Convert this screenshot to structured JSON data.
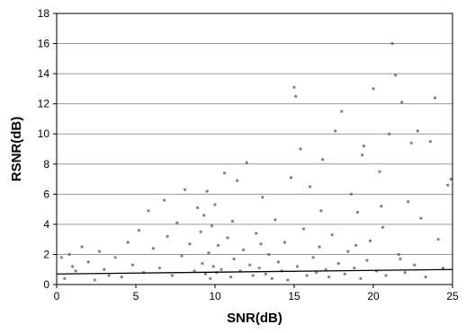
{
  "chart_data": {
    "type": "scatter",
    "title": "",
    "xlabel": "SNR(dB)",
    "ylabel": "RSNR(dB)",
    "xlim": [
      0,
      25
    ],
    "ylim": [
      0,
      18
    ],
    "x_ticks": [
      0,
      5,
      10,
      15,
      20,
      25
    ],
    "y_ticks": [
      0,
      2,
      4,
      6,
      8,
      10,
      12,
      14,
      16,
      18
    ],
    "x_tick_labels": [
      "0",
      "5",
      "10",
      "15",
      "20",
      "25"
    ],
    "y_tick_labels": [
      "0",
      "2",
      "4",
      "6",
      "8",
      "10",
      "12",
      "14",
      "16",
      "18"
    ],
    "grid": "horizontal",
    "legend": "none",
    "colors": {
      "points": "#555555",
      "trend": "#000000",
      "grid": "#999999"
    },
    "trend_line": {
      "x": [
        0,
        25
      ],
      "y": [
        0.7,
        1.0
      ]
    },
    "series": [
      {
        "name": "",
        "points": [
          [
            0.3,
            1.8
          ],
          [
            0.5,
            0.4
          ],
          [
            0.8,
            2.0
          ],
          [
            1.0,
            1.2
          ],
          [
            1.2,
            0.9
          ],
          [
            1.6,
            2.5
          ],
          [
            2.0,
            1.5
          ],
          [
            2.4,
            0.3
          ],
          [
            2.7,
            2.2
          ],
          [
            3.0,
            1.0
          ],
          [
            3.3,
            0.6
          ],
          [
            3.7,
            1.8
          ],
          [
            4.1,
            0.5
          ],
          [
            4.5,
            2.8
          ],
          [
            4.8,
            1.3
          ],
          [
            5.2,
            3.6
          ],
          [
            5.5,
            0.8
          ],
          [
            5.8,
            4.9
          ],
          [
            6.1,
            2.4
          ],
          [
            6.5,
            1.1
          ],
          [
            6.8,
            5.6
          ],
          [
            7.0,
            3.2
          ],
          [
            7.3,
            0.6
          ],
          [
            7.6,
            4.1
          ],
          [
            7.9,
            1.9
          ],
          [
            8.1,
            6.3
          ],
          [
            8.4,
            2.7
          ],
          [
            8.7,
            0.9
          ],
          [
            8.9,
            5.1
          ],
          [
            9.1,
            3.5
          ],
          [
            9.2,
            1.4
          ],
          [
            9.3,
            4.6
          ],
          [
            9.4,
            0.7
          ],
          [
            9.5,
            6.2
          ],
          [
            9.6,
            2.1
          ],
          [
            9.7,
            0.4
          ],
          [
            9.8,
            3.9
          ],
          [
            9.9,
            1.2
          ],
          [
            10.0,
            5.3
          ],
          [
            10.1,
            0.8
          ],
          [
            10.2,
            2.6
          ],
          [
            10.4,
            1.0
          ],
          [
            10.6,
            7.4
          ],
          [
            10.8,
            3.1
          ],
          [
            11.0,
            0.5
          ],
          [
            11.2,
            1.7
          ],
          [
            11.4,
            6.9
          ],
          [
            11.6,
            0.9
          ],
          [
            11.8,
            2.3
          ],
          [
            12.0,
            8.1
          ],
          [
            12.2,
            1.3
          ],
          [
            12.4,
            0.6
          ],
          [
            12.6,
            3.4
          ],
          [
            12.8,
            1.1
          ],
          [
            13.0,
            5.8
          ],
          [
            13.2,
            0.7
          ],
          [
            13.4,
            2.0
          ],
          [
            13.6,
            0.4
          ],
          [
            13.8,
            4.3
          ],
          [
            14.0,
            1.5
          ],
          [
            14.2,
            0.9
          ],
          [
            14.4,
            2.8
          ],
          [
            14.6,
            0.3
          ],
          [
            14.8,
            7.1
          ],
          [
            15.0,
            13.1
          ],
          [
            15.1,
            12.5
          ],
          [
            15.2,
            1.2
          ],
          [
            15.4,
            9.0
          ],
          [
            15.6,
            3.7
          ],
          [
            15.8,
            0.6
          ],
          [
            16.0,
            6.5
          ],
          [
            16.2,
            1.8
          ],
          [
            16.4,
            0.8
          ],
          [
            16.6,
            2.5
          ],
          [
            16.8,
            8.3
          ],
          [
            17.0,
            1.0
          ],
          [
            17.2,
            0.5
          ],
          [
            17.4,
            3.3
          ],
          [
            17.6,
            10.2
          ],
          [
            17.8,
            1.4
          ],
          [
            18.0,
            11.5
          ],
          [
            18.2,
            0.7
          ],
          [
            18.4,
            2.2
          ],
          [
            18.6,
            6.0
          ],
          [
            18.8,
            1.1
          ],
          [
            19.0,
            4.8
          ],
          [
            19.2,
            0.4
          ],
          [
            19.4,
            9.2
          ],
          [
            19.6,
            1.6
          ],
          [
            19.8,
            2.9
          ],
          [
            20.0,
            13.0
          ],
          [
            20.2,
            0.9
          ],
          [
            20.4,
            7.5
          ],
          [
            20.6,
            3.8
          ],
          [
            20.8,
            0.6
          ],
          [
            21.0,
            10.0
          ],
          [
            21.2,
            16.0
          ],
          [
            21.4,
            13.9
          ],
          [
            21.6,
            2.0
          ],
          [
            21.8,
            12.1
          ],
          [
            22.0,
            0.8
          ],
          [
            22.2,
            5.5
          ],
          [
            22.4,
            9.4
          ],
          [
            22.6,
            1.3
          ],
          [
            22.8,
            10.2
          ],
          [
            23.0,
            4.4
          ],
          [
            23.3,
            0.5
          ],
          [
            23.6,
            9.5
          ],
          [
            23.9,
            12.4
          ],
          [
            24.1,
            3.0
          ],
          [
            24.4,
            1.1
          ],
          [
            24.7,
            6.6
          ],
          [
            24.9,
            7.0
          ],
          [
            11.1,
            4.2
          ],
          [
            12.9,
            2.7
          ],
          [
            16.7,
            4.9
          ],
          [
            18.9,
            2.6
          ],
          [
            19.3,
            8.6
          ],
          [
            20.5,
            5.2
          ],
          [
            21.7,
            1.7
          ]
        ]
      }
    ]
  }
}
